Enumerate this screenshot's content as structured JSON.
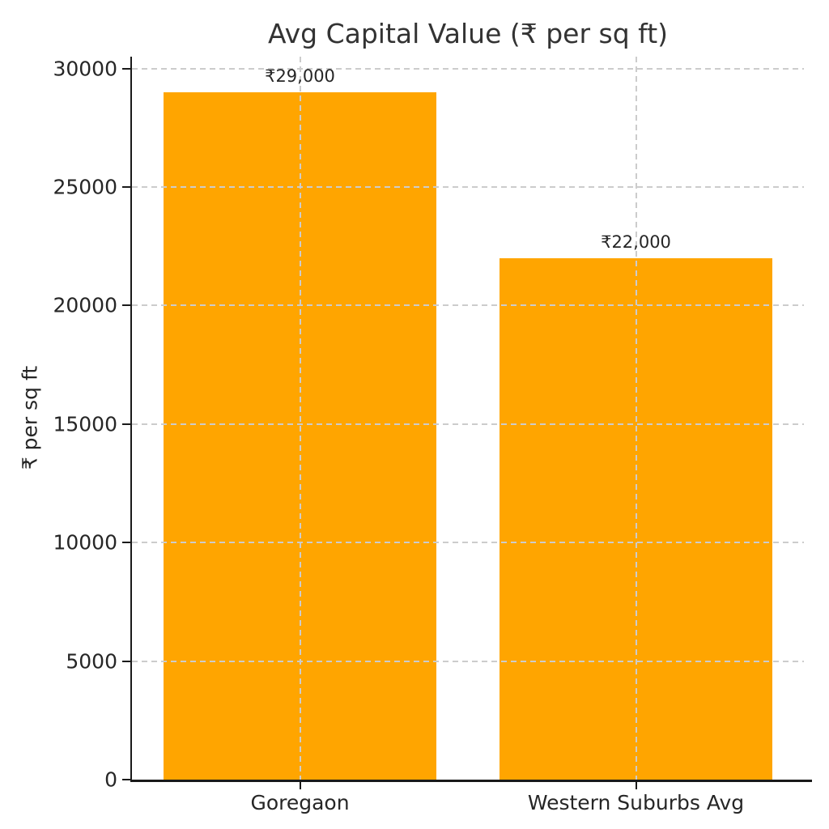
{
  "chart_data": {
    "type": "bar",
    "title": "Avg Capital Value (₹ per sq ft)",
    "ylabel": "₹ per sq ft",
    "xlabel": "",
    "categories": [
      "Goregaon",
      "Western Suburbs Avg"
    ],
    "values": [
      29000,
      22000
    ],
    "value_labels": [
      "₹29,000",
      "₹22,000"
    ],
    "yticks": [
      0,
      5000,
      10000,
      15000,
      20000,
      25000,
      30000
    ],
    "ytick_labels": [
      "0",
      "5000",
      "10000",
      "15000",
      "20000",
      "25000",
      "30000"
    ],
    "ylim": [
      0,
      30500
    ],
    "grid": true,
    "grid_style": "dashed",
    "grid_over_bars": true,
    "legend_position": "none",
    "bar_color": "#FFA500",
    "grid_color": "#cccccc",
    "axis_color": "#1a1a1a",
    "text_color": "#262626",
    "background_color": "#ffffff"
  }
}
